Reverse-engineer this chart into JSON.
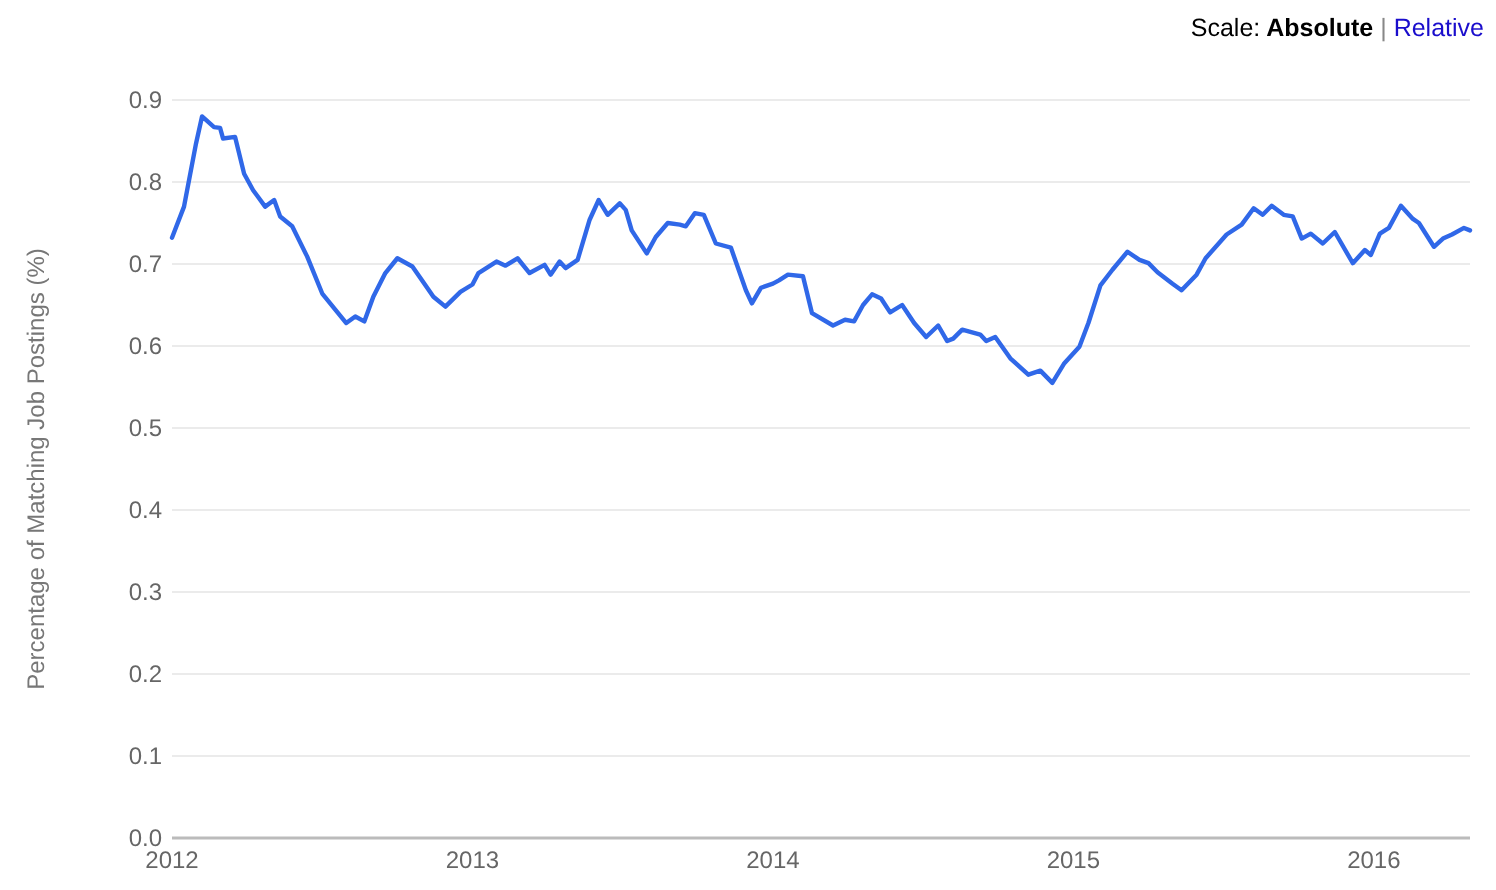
{
  "chart_data": {
    "type": "line",
    "ylabel": "Percentage of Matching Job Postings (%)",
    "annotations": [
      "Scale:",
      "Absolute",
      "|",
      "Relative"
    ],
    "xlim": [
      2012,
      2016.32
    ],
    "xticks": [
      2012,
      2013,
      2014,
      2015,
      2016
    ],
    "ylim": [
      0,
      0.9
    ],
    "yticks": [
      {
        "value": 0,
        "label": "0.0"
      },
      0.1,
      0.2,
      0.3,
      0.4,
      0.5,
      0.6,
      0.7,
      0.8,
      0.9
    ],
    "grid": "y",
    "line_style": "solid",
    "series": [
      {
        "color": "#3068e8",
        "x": [
          2012.0,
          2012.04,
          2012.08,
          2012.1,
          2012.14,
          2012.16,
          2012.17,
          2012.21,
          2012.24,
          2012.27,
          2012.31,
          2012.34,
          2012.36,
          2012.4,
          2012.45,
          2012.5,
          2012.58,
          2012.61,
          2012.64,
          2012.67,
          2012.71,
          2012.75,
          2012.8,
          2012.84,
          2012.87,
          2012.91,
          2012.96,
          2013.0,
          2013.02,
          2013.08,
          2013.11,
          2013.15,
          2013.19,
          2013.24,
          2013.26,
          2013.29,
          2013.31,
          2013.35,
          2013.39,
          2013.42,
          2013.45,
          2013.49,
          2013.51,
          2013.53,
          2013.58,
          2013.61,
          2013.65,
          2013.69,
          2013.71,
          2013.74,
          2013.77,
          2013.81,
          2013.86,
          2013.91,
          2013.93,
          2013.96,
          2014.0,
          2014.02,
          2014.05,
          2014.1,
          2014.13,
          2014.2,
          2014.24,
          2014.27,
          2014.3,
          2014.33,
          2014.36,
          2014.39,
          2014.43,
          2014.47,
          2014.51,
          2014.55,
          2014.58,
          2014.6,
          2014.63,
          2014.66,
          2014.69,
          2014.71,
          2014.74,
          2014.79,
          2014.85,
          2014.89,
          2014.93,
          2014.97,
          2015.02,
          2015.05,
          2015.09,
          2015.13,
          2015.18,
          2015.22,
          2015.25,
          2015.28,
          2015.33,
          2015.36,
          2015.41,
          2015.44,
          2015.51,
          2015.56,
          2015.6,
          2015.63,
          2015.66,
          2015.7,
          2015.73,
          2015.76,
          2015.79,
          2015.83,
          2015.87,
          2015.93,
          2015.97,
          2015.99,
          2016.02,
          2016.05,
          2016.09,
          2016.13,
          2016.15,
          2016.2,
          2016.23,
          2016.26,
          2016.3,
          2016.32
        ],
        "values": [
          0.732,
          0.77,
          0.847,
          0.88,
          0.867,
          0.866,
          0.853,
          0.855,
          0.81,
          0.79,
          0.77,
          0.778,
          0.758,
          0.746,
          0.709,
          0.664,
          0.628,
          0.636,
          0.63,
          0.66,
          0.689,
          0.707,
          0.697,
          0.676,
          0.66,
          0.648,
          0.666,
          0.675,
          0.689,
          0.703,
          0.698,
          0.707,
          0.689,
          0.699,
          0.687,
          0.703,
          0.695,
          0.705,
          0.754,
          0.778,
          0.76,
          0.774,
          0.766,
          0.741,
          0.713,
          0.733,
          0.75,
          0.748,
          0.746,
          0.762,
          0.76,
          0.725,
          0.72,
          0.668,
          0.652,
          0.671,
          0.676,
          0.68,
          0.687,
          0.685,
          0.64,
          0.625,
          0.632,
          0.63,
          0.65,
          0.663,
          0.658,
          0.641,
          0.65,
          0.628,
          0.611,
          0.625,
          0.606,
          0.609,
          0.62,
          0.617,
          0.614,
          0.606,
          0.611,
          0.585,
          0.565,
          0.57,
          0.555,
          0.579,
          0.599,
          0.628,
          0.674,
          0.693,
          0.715,
          0.705,
          0.701,
          0.69,
          0.676,
          0.668,
          0.687,
          0.707,
          0.736,
          0.748,
          0.768,
          0.76,
          0.771,
          0.76,
          0.758,
          0.731,
          0.737,
          0.725,
          0.739,
          0.701,
          0.717,
          0.711,
          0.737,
          0.744,
          0.771,
          0.755,
          0.75,
          0.721,
          0.731,
          0.736,
          0.744,
          0.741
        ]
      }
    ]
  }
}
